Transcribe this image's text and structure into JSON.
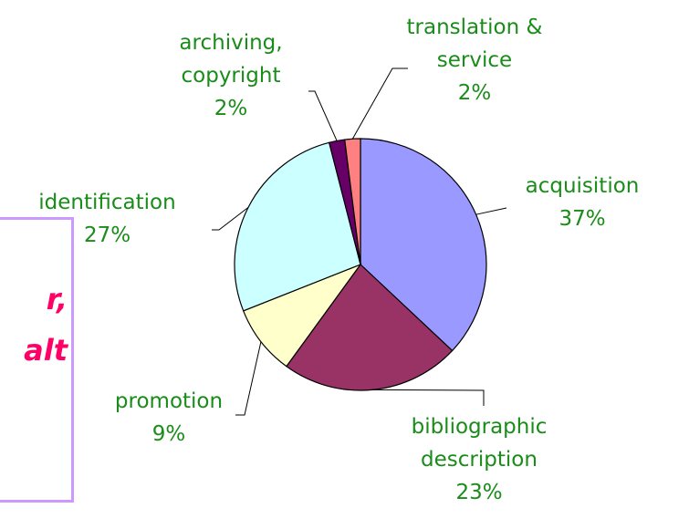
{
  "chart_data": {
    "type": "pie",
    "categories": [
      "acquisition",
      "bibliographic description",
      "promotion",
      "identification",
      "archiving, copyright",
      "translation & service"
    ],
    "values": [
      37,
      23,
      9,
      27,
      2,
      2
    ],
    "value_labels": [
      "37%",
      "23%",
      "9%",
      "27%",
      "2%",
      "2%"
    ],
    "colors": [
      "#9999ff",
      "#993366",
      "#ffffcc",
      "#ccffff",
      "#660066",
      "#ff8080"
    ]
  },
  "callout": {
    "lines": [
      "r,",
      "alt"
    ]
  }
}
